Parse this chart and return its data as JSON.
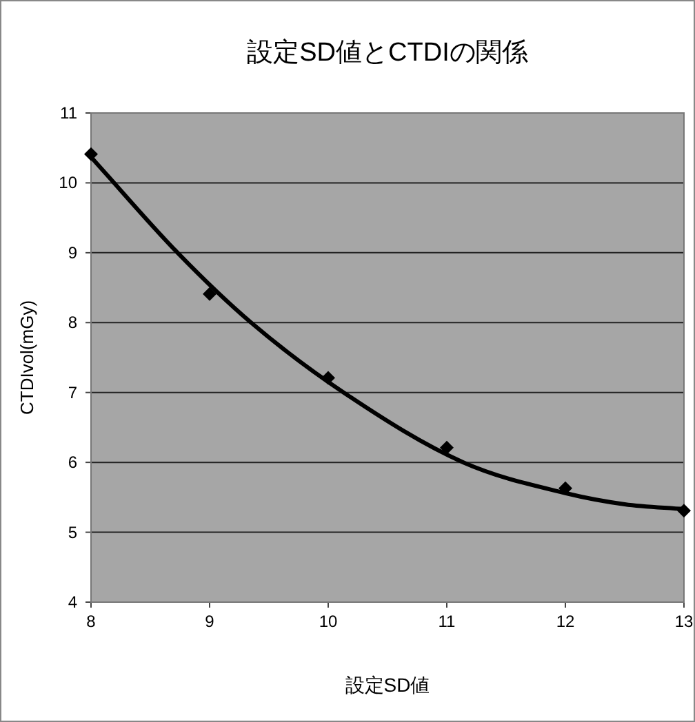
{
  "chart_data": {
    "type": "scatter",
    "title": "設定SD値とCTDIの関係",
    "xlabel": "設定SD値",
    "ylabel": "CTDIvol(mGy)",
    "xlim": [
      8,
      13
    ],
    "ylim": [
      4,
      11
    ],
    "xticks": [
      8,
      9,
      10,
      11,
      12,
      13
    ],
    "yticks": [
      4,
      5,
      6,
      7,
      8,
      9,
      10,
      11
    ],
    "grid": "y",
    "series": [
      {
        "type": "scatter",
        "color": "#000000",
        "marker": "diamond",
        "x": [
          8,
          9,
          10,
          11,
          12,
          13
        ],
        "values": [
          10.41,
          8.41,
          7.21,
          6.21,
          5.63,
          5.31
        ]
      },
      {
        "type": "line",
        "color": "#000000",
        "line_style": "solid",
        "x": [
          8,
          8.73,
          9.35,
          10.13,
          11.14,
          12,
          12.5,
          13
        ],
        "values": [
          10.37,
          9,
          8,
          7,
          6,
          5.56,
          5.4,
          5.33
        ]
      }
    ]
  }
}
